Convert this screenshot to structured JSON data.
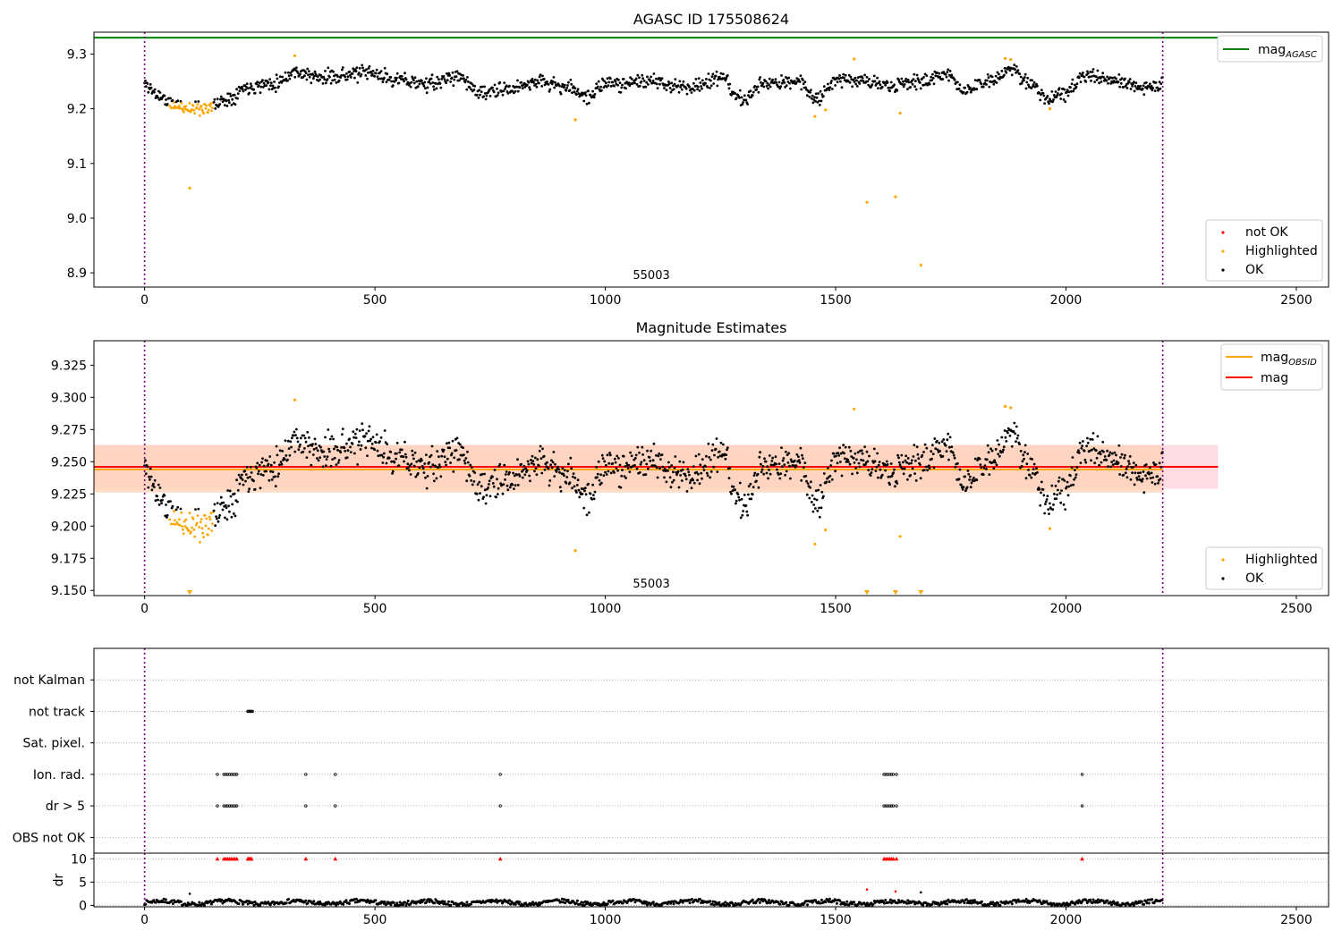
{
  "figure": {
    "title": "AGASC ID 175508624"
  },
  "colors": {
    "ok": "#000000",
    "highlighted": "#ffa500",
    "not_ok": "#ff0000",
    "agasc_line": "#008000",
    "obsid_line": "#ffa500",
    "mag_line": "#ff0000",
    "obs_boundary": "#800080",
    "band_mag": "#ffc0cb",
    "band_obsid": "#ffd2b4"
  },
  "chart_data": [
    {
      "id": "agasc",
      "type": "scatter",
      "title": "AGASC ID 175508624",
      "xlim": [
        -110,
        2570
      ],
      "ylim": [
        8.874,
        9.34
      ],
      "xticks": [
        0,
        500,
        1000,
        1500,
        2000,
        2500
      ],
      "yticks": [
        8.9,
        9.0,
        9.1,
        9.2,
        9.3
      ],
      "ytick_labels": [
        "8.9",
        "9.0",
        "9.1",
        "9.2",
        "9.3"
      ],
      "obsid_label": "55003",
      "obsid_label_x": 1100,
      "obs_boundaries": [
        0,
        2210
      ],
      "mag_agasc": 9.33,
      "series_seed": 11,
      "legend_lines": [
        {
          "name": "mag",
          "sub": "AGASC"
        }
      ],
      "legend_points": [
        {
          "name": "not OK",
          "color_key": "not_ok"
        },
        {
          "name": "Highlighted",
          "color_key": "highlighted"
        },
        {
          "name": "OK",
          "color_key": "ok"
        }
      ],
      "highlighted_points": [
        [
          326,
          9.297
        ],
        [
          1540,
          9.291
        ],
        [
          1868,
          9.292
        ],
        [
          1880,
          9.29
        ],
        [
          935,
          9.18
        ],
        [
          1455,
          9.186
        ],
        [
          1478,
          9.198
        ],
        [
          1640,
          9.192
        ],
        [
          1965,
          9.2
        ],
        [
          98,
          9.055
        ],
        [
          1568,
          9.029
        ],
        [
          1630,
          9.039
        ],
        [
          1685,
          8.914
        ]
      ]
    },
    {
      "id": "estimates",
      "type": "scatter",
      "title": "Magnitude Estimates",
      "xlim": [
        -110,
        2570
      ],
      "ylim": [
        9.146,
        9.344
      ],
      "xticks": [
        0,
        500,
        1000,
        1500,
        2000,
        2500
      ],
      "yticks": [
        9.15,
        9.175,
        9.2,
        9.225,
        9.25,
        9.275,
        9.3,
        9.325
      ],
      "ytick_labels": [
        "9.150",
        "9.175",
        "9.200",
        "9.225",
        "9.250",
        "9.275",
        "9.300",
        "9.325"
      ],
      "obsid_label": "55003",
      "obsid_label_x": 1100,
      "obs_boundaries": [
        0,
        2210
      ],
      "series_seed": 11,
      "mag": 9.246,
      "mag_band": [
        9.229,
        9.263
      ],
      "mag_obsid": 9.244,
      "mag_obsid_band": [
        9.226,
        9.263
      ],
      "legend_lines": [
        {
          "name": "mag",
          "sub": "OBSID",
          "color_key": "obsid_line"
        },
        {
          "name": "mag",
          "sub": "",
          "color_key": "mag_line"
        }
      ],
      "legend_points": [
        {
          "name": "Highlighted",
          "color_key": "highlighted"
        },
        {
          "name": "OK",
          "color_key": "ok"
        }
      ],
      "highlighted_points": [
        [
          326,
          9.298
        ],
        [
          1540,
          9.291
        ],
        [
          1868,
          9.293
        ],
        [
          1880,
          9.292
        ],
        [
          935,
          9.181
        ],
        [
          1455,
          9.186
        ],
        [
          1478,
          9.197
        ],
        [
          1640,
          9.192
        ],
        [
          1965,
          9.198
        ]
      ],
      "offscale_low_x": [
        98,
        1568,
        1630,
        1685
      ]
    },
    {
      "id": "flags",
      "type": "scatter",
      "ylim": [
        -0.5,
        6.0
      ],
      "xlim": [
        -110,
        2570
      ],
      "obs_boundaries": [
        0,
        2210
      ],
      "categories": [
        "OBS not OK",
        "dr > 5",
        "Ion. rad.",
        "Sat. pixel.",
        "not track",
        "not Kalman"
      ],
      "points": [
        {
          "flag": "not track",
          "x": [
            224,
            226,
            228,
            230,
            232,
            234
          ]
        },
        {
          "flag": "Ion. rad.",
          "x": [
            158,
            172,
            176,
            180,
            184,
            188,
            192,
            196,
            200,
            350,
            414,
            772,
            1605,
            1609,
            1613,
            1617,
            1621,
            1625,
            1632,
            2035
          ]
        },
        {
          "flag": "dr > 5",
          "x": [
            158,
            172,
            176,
            180,
            184,
            188,
            192,
            196,
            200,
            350,
            414,
            772,
            1605,
            1609,
            1613,
            1617,
            1621,
            1625,
            1632,
            2035
          ]
        }
      ]
    },
    {
      "id": "dr",
      "type": "scatter",
      "ylabel": "dr",
      "xlim": [
        -110,
        2570
      ],
      "ylim": [
        -0.3,
        11.2
      ],
      "xticks": [
        0,
        500,
        1000,
        1500,
        2000,
        2500
      ],
      "yticks": [
        0,
        5,
        10
      ],
      "ytick_labels": [
        "0",
        "5",
        "10"
      ],
      "obs_boundaries": [
        0,
        2210
      ],
      "baseline_dr": 0.6,
      "outliers_ok": [
        [
          98,
          2.5
        ],
        [
          1685,
          2.8
        ]
      ],
      "outliers_not_ok": [
        [
          1568,
          3.4
        ],
        [
          1630,
          3.0
        ]
      ],
      "clipped_at": 10,
      "clipped_x": [
        158,
        172,
        176,
        180,
        184,
        188,
        192,
        196,
        200,
        224,
        226,
        228,
        230,
        232,
        350,
        414,
        772,
        1605,
        1609,
        1613,
        1617,
        1621,
        1625,
        1632,
        2035
      ]
    }
  ]
}
